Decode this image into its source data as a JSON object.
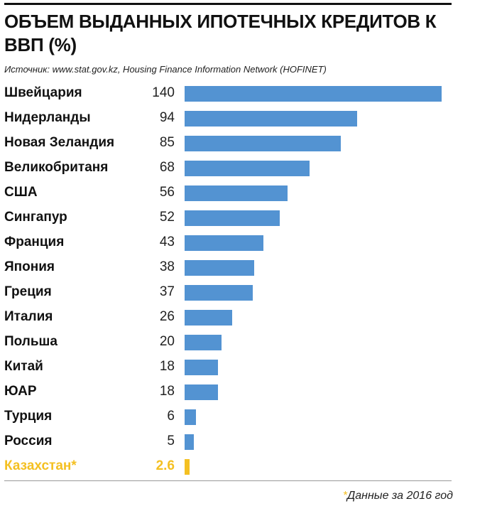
{
  "title": "ОБЪЕМ ВЫДАННЫХ ИПОТЕЧНЫХ КРЕДИТОВ К ВВП (%)",
  "source": "Источник: www.stat.gov.kz, Housing Finance Information Network (HOFINET)",
  "footnote": {
    "marker": "*",
    "text": "Данные за 2016 год"
  },
  "colors": {
    "bar": "#5393d2",
    "highlight": "#f4c022"
  },
  "chart_data": {
    "type": "bar",
    "orientation": "horizontal",
    "title": "ОБЪЕМ ВЫДАННЫХ ИПОТЕЧНЫХ КРЕДИТОВ К ВВП (%)",
    "xlim": [
      0,
      140
    ],
    "grid": false,
    "categories": [
      "Швейцария",
      "Нидерланды",
      "Новая Зеландия",
      "Великобританя",
      "США",
      "Сингапур",
      "Франция",
      "Япония",
      "Греция",
      "Италия",
      "Польша",
      "Китай",
      "ЮАР",
      "Турция",
      "Россия",
      "Казахстан*"
    ],
    "labels": [
      "140",
      "94",
      "85",
      "68",
      "56",
      "52",
      "43",
      "38",
      "37",
      "26",
      "20",
      "18",
      "18",
      "6",
      "5",
      "2.6"
    ],
    "values": [
      140,
      94,
      85,
      68,
      56,
      52,
      43,
      38,
      37,
      26,
      20,
      18,
      18,
      6,
      5,
      2.6
    ],
    "highlight": "Казахстан*"
  }
}
